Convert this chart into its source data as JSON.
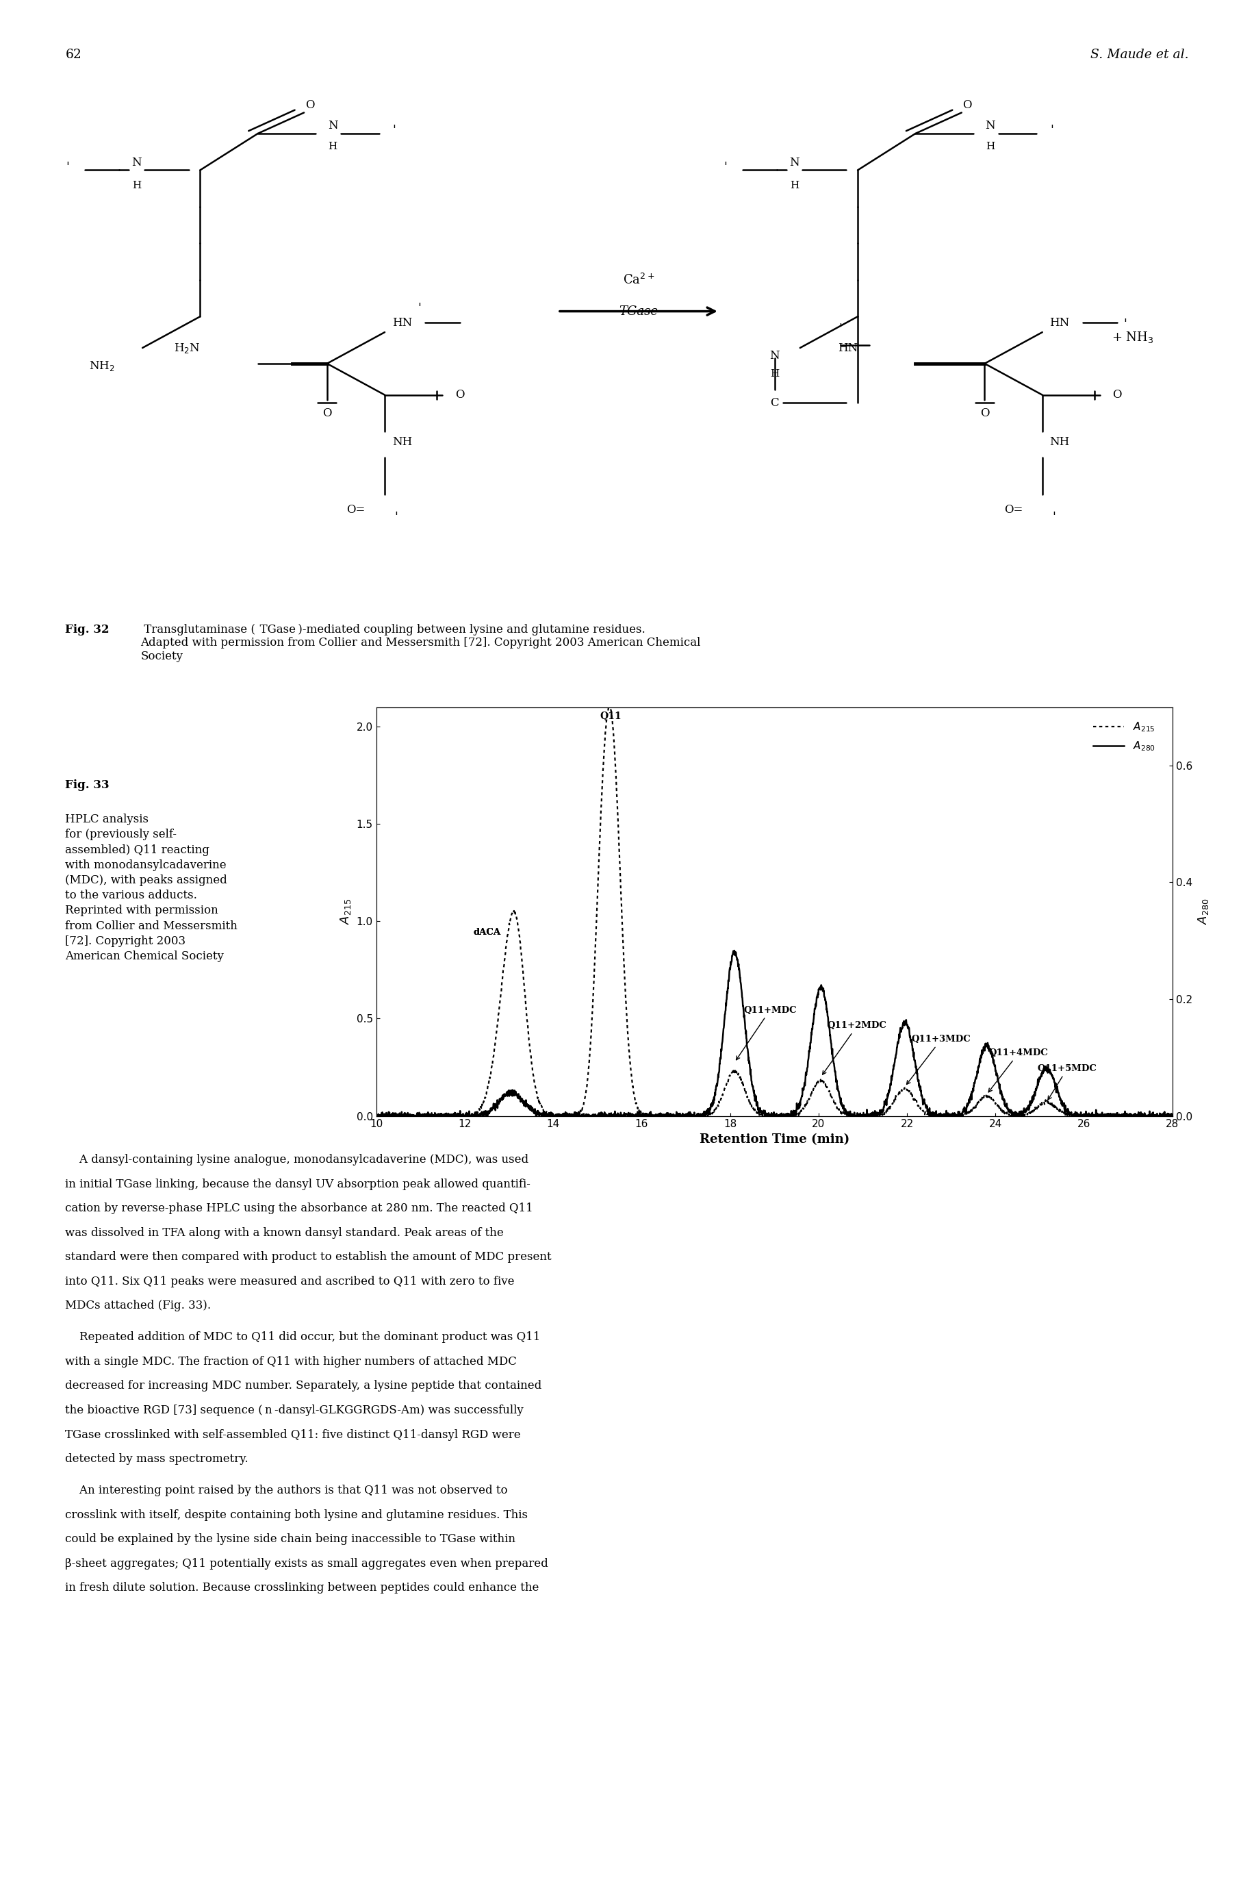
{
  "page_number": "62",
  "author": "S. Maude et al.",
  "fig32_caption_bold": "Fig. 32",
  "fig32_caption_normal": "  Transglutaminase ( TGase )-mediated coupling between lysine and glutamine residues. Adapted with permission from Collier and Messersmith [72]. Copyright 2003 American Chemical Society",
  "fig33_caption_bold": "Fig. 33",
  "fig33_caption_normal": "  HPLC analysis\nfor (previously self-\nassembled) Q11 reacting\nwith monodansylcadaverine\n(MDC), with peaks assigned\nto the various adducts.\nReprinted with permission\nfrom Collier and Messersmith\n[72]. Copyright 2003\nAmerican Chemical Society",
  "xlabel": "Retention Time (min)",
  "xlim": [
    10,
    28
  ],
  "ylim_left": [
    0.0,
    2.1
  ],
  "ylim_right": [
    0.0,
    0.7
  ],
  "xticks": [
    10,
    12,
    14,
    16,
    18,
    20,
    22,
    24,
    26,
    28
  ],
  "yticks_left": [
    0.0,
    0.5,
    1.0,
    1.5,
    2.0
  ],
  "yticks_right": [
    0.0,
    0.2,
    0.4,
    0.6
  ],
  "background_color": "#ffffff",
  "text_color": "#000000",
  "body_para1": [
    "    A dansyl-containing lysine analogue, monodansylcadaverine (MDC), was used",
    "in initial TGase linking, because the dansyl UV absorption peak allowed quantifi-",
    "cation by reverse-phase HPLC using the absorbance at 280 nm. The reacted Q11",
    "was dissolved in TFA along with a known dansyl standard. Peak areas of the",
    "standard were then compared with product to establish the amount of MDC present",
    "into Q11. Six Q11 peaks were measured and ascribed to Q11 with zero to five",
    "MDCs attached (Fig. 33)."
  ],
  "body_para2": [
    "    Repeated addition of MDC to Q11 did occur, but the dominant product was Q11",
    "with a single MDC. The fraction of Q11 with higher numbers of attached MDC",
    "decreased for increasing MDC number. Separately, a lysine peptide that contained",
    "the bioactive RGD [73] sequence ( n -dansyl-GLKGGRGDS-Am) was successfully",
    "TGase crosslinked with self-assembled Q11: five distinct Q11-dansyl RGD were",
    "detected by mass spectrometry."
  ],
  "body_para3": [
    "    An interesting point raised by the authors is that Q11 was not observed to",
    "crosslink with itself, despite containing both lysine and glutamine residues. This",
    "could be explained by the lysine side chain being inaccessible to TGase within",
    "β-sheet aggregates; Q11 potentially exists as small aggregates even when prepared",
    "in fresh dilute solution. Because crosslinking between peptides could enhance the"
  ]
}
